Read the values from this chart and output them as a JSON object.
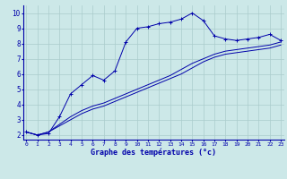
{
  "xlabel": "Graphe des températures (°c)",
  "bg_color": "#cce8e8",
  "grid_color": "#aacccc",
  "line_color": "#0000aa",
  "x_ticks": [
    0,
    1,
    2,
    3,
    4,
    5,
    6,
    7,
    8,
    9,
    10,
    11,
    12,
    13,
    14,
    15,
    16,
    17,
    18,
    19,
    20,
    21,
    22,
    23
  ],
  "y_ticks": [
    2,
    3,
    4,
    5,
    6,
    7,
    8,
    9,
    10
  ],
  "xlim": [
    -0.3,
    23.3
  ],
  "ylim": [
    1.7,
    10.5
  ],
  "curve1_x": [
    0,
    1,
    2,
    3,
    4,
    5,
    6,
    7,
    8,
    9,
    10,
    11,
    12,
    13,
    14,
    15,
    16,
    17,
    18,
    19,
    20,
    21,
    22,
    23
  ],
  "curve1_y": [
    2.2,
    2.0,
    2.1,
    3.2,
    4.7,
    5.3,
    5.9,
    5.6,
    6.2,
    8.1,
    9.0,
    9.1,
    9.3,
    9.4,
    9.6,
    10.0,
    9.5,
    8.5,
    8.3,
    8.2,
    8.3,
    8.4,
    8.6,
    8.2
  ],
  "curve2_x": [
    0,
    1,
    2,
    3,
    4,
    5,
    6,
    7,
    8,
    9,
    10,
    11,
    12,
    13,
    14,
    15,
    16,
    17,
    18,
    19,
    20,
    21,
    22,
    23
  ],
  "curve2_y": [
    2.2,
    2.0,
    2.2,
    2.7,
    3.2,
    3.6,
    3.9,
    4.1,
    4.4,
    4.7,
    5.0,
    5.3,
    5.6,
    5.9,
    6.3,
    6.7,
    7.0,
    7.3,
    7.5,
    7.6,
    7.7,
    7.8,
    7.9,
    8.1
  ],
  "curve3_x": [
    0,
    1,
    2,
    3,
    4,
    5,
    6,
    7,
    8,
    9,
    10,
    11,
    12,
    13,
    14,
    15,
    16,
    17,
    18,
    19,
    20,
    21,
    22,
    23
  ],
  "curve3_y": [
    2.2,
    2.0,
    2.2,
    2.6,
    3.0,
    3.4,
    3.7,
    3.9,
    4.2,
    4.5,
    4.8,
    5.1,
    5.4,
    5.7,
    6.0,
    6.4,
    6.8,
    7.1,
    7.3,
    7.4,
    7.5,
    7.6,
    7.7,
    7.9
  ],
  "xlabel_fontsize": 6,
  "xtick_fontsize": 4.5,
  "ytick_fontsize": 5.5
}
